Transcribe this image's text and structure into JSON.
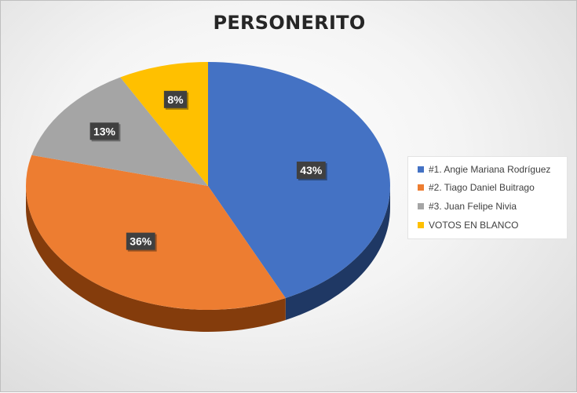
{
  "chart_data": {
    "type": "pie",
    "title": "PERSONERITO",
    "categories": [
      "#1. Angie Mariana Rodríguez",
      "#2. Tiago Daniel Buitrago",
      "#3. Juan Felipe Nivia",
      "VOTOS EN BLANCO"
    ],
    "values": [
      43,
      36,
      13,
      8
    ],
    "data_labels": [
      "43%",
      "36%",
      "13%",
      "8%"
    ],
    "colors": [
      "#4472C4",
      "#ED7D31",
      "#A5A5A5",
      "#FFC000"
    ],
    "side_colors": [
      "#1F3864",
      "#843C0C",
      "#595959",
      "#8F6B00"
    ],
    "legend_position": "right",
    "style": "3d-pie"
  }
}
